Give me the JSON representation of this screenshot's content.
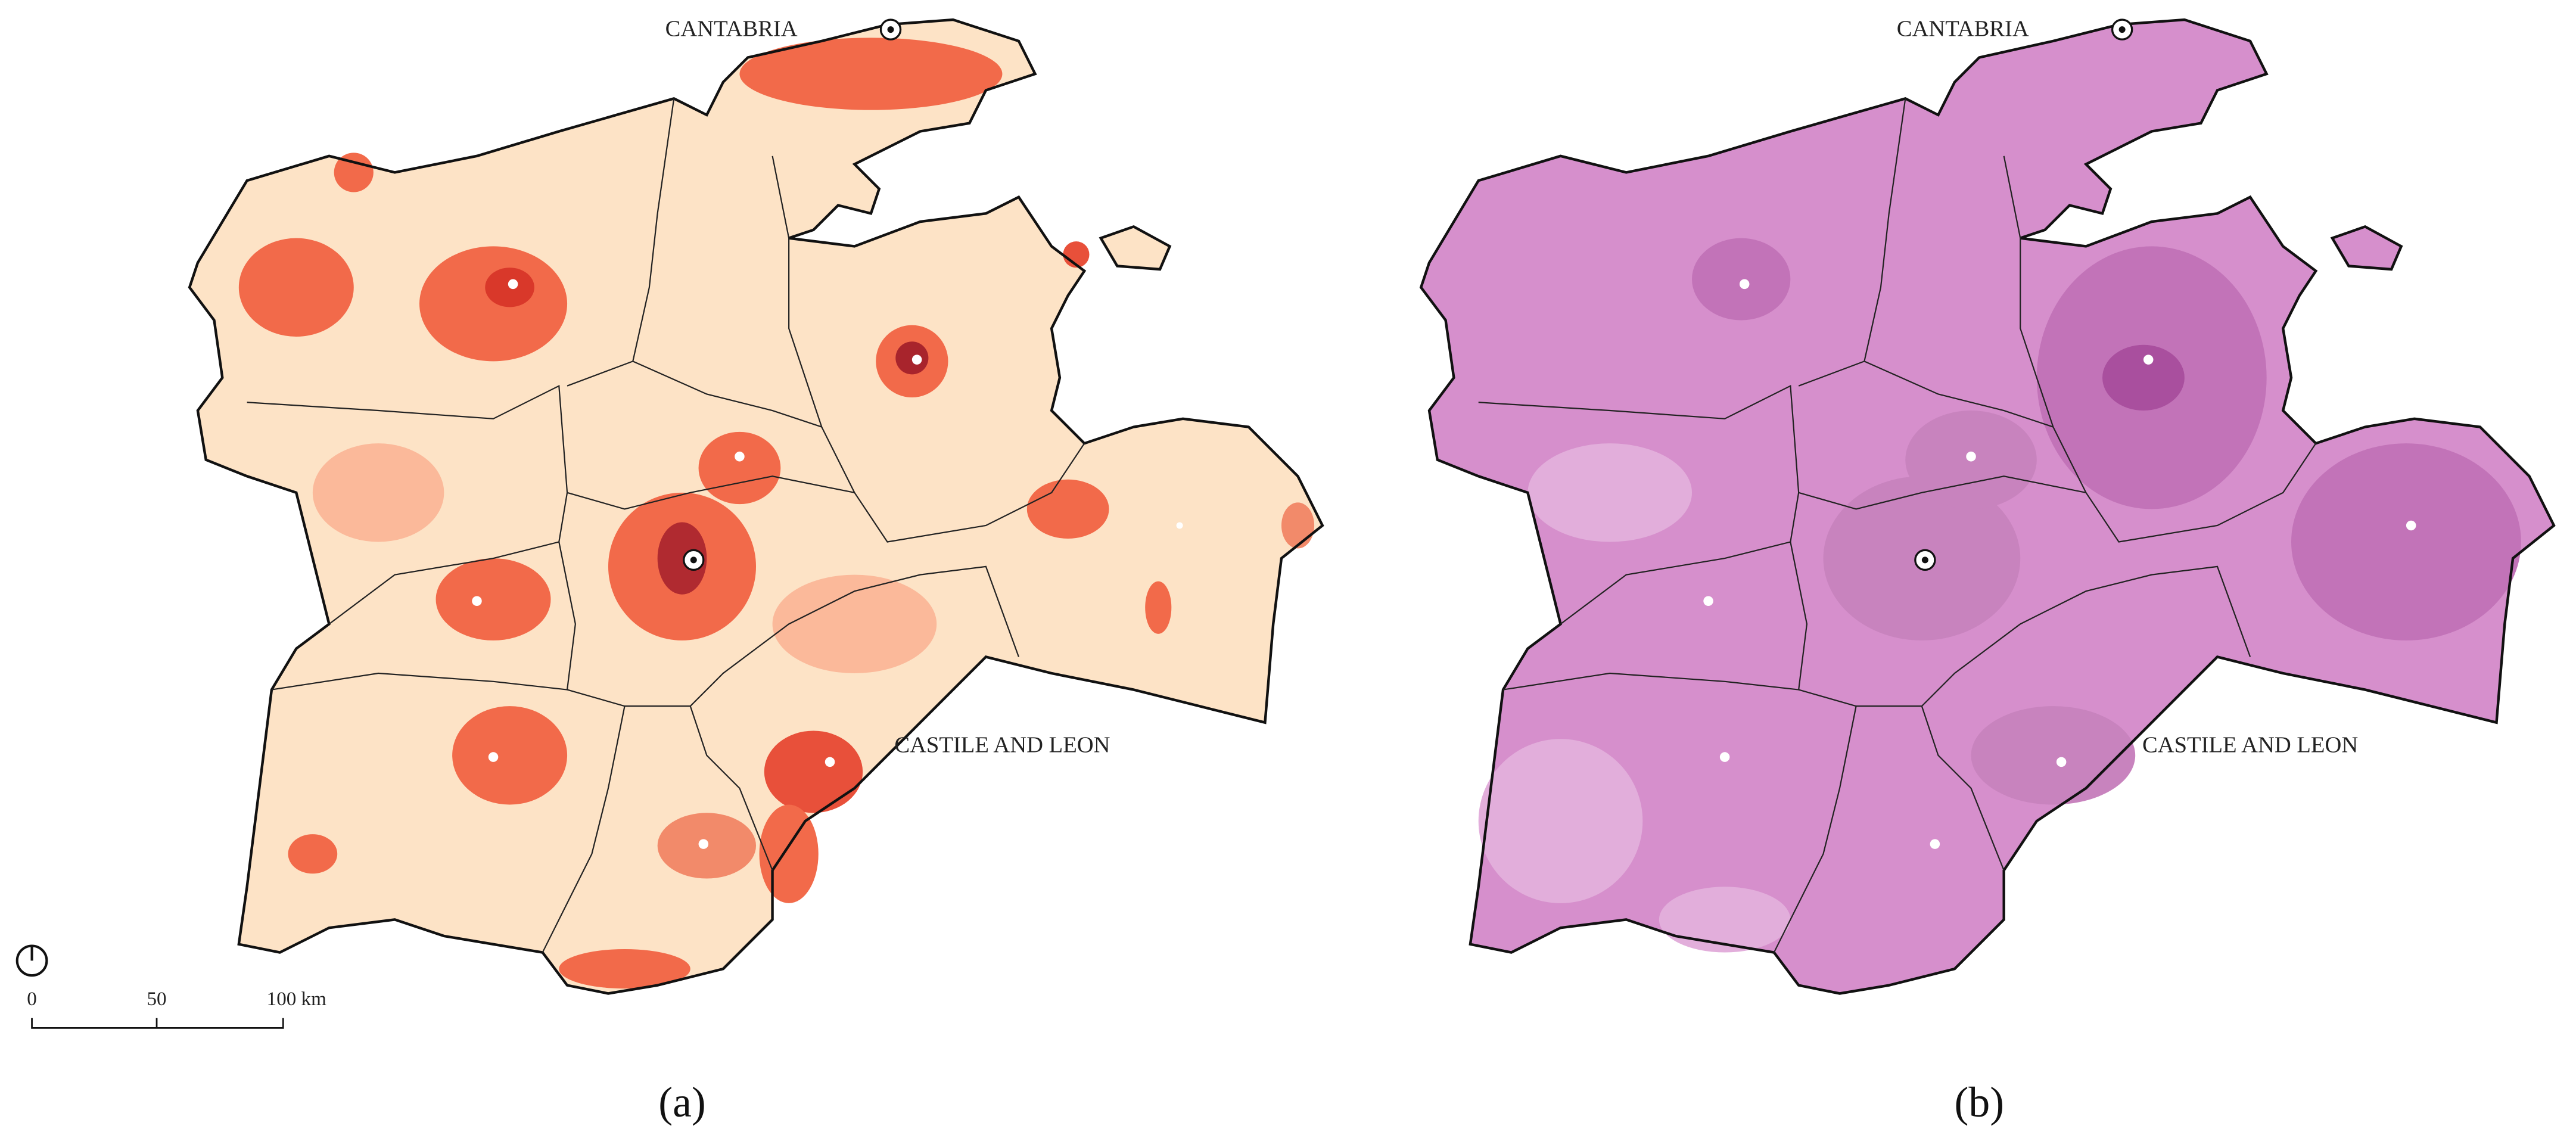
{
  "panels": [
    {
      "labels": {
        "north": "CANTABRIA",
        "region": "CASTILE AND LEON"
      },
      "caption": "(a)"
    },
    {
      "labels": {
        "north": "CANTABRIA",
        "region": "CASTILE AND LEON"
      },
      "caption": "(b)"
    }
  ],
  "scale_bar": {
    "ticks": [
      "0",
      "50",
      "100 km"
    ]
  }
}
